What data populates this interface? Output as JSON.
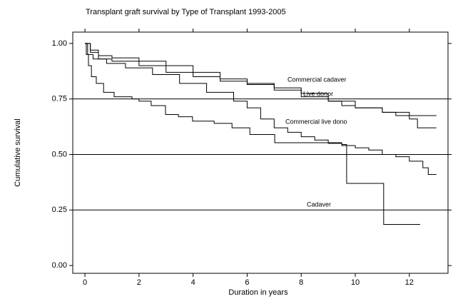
{
  "chart_data": {
    "type": "step",
    "title": "Transplant graft survival by Type of Transplant 1993-2005",
    "x_label": "Duration in years",
    "y_label": "Cumulative survival",
    "xlim": [
      -0.45,
      13.43
    ],
    "ylim": [
      -0.035,
      1.051
    ],
    "xticks": [
      0,
      2,
      4,
      6,
      8,
      10,
      12
    ],
    "yticks": [
      {
        "value": 0,
        "label": "0.00"
      },
      {
        "value": 0.25,
        "label": "0.25"
      },
      {
        "value": 0.5,
        "label": "0.50"
      },
      {
        "value": 0.75,
        "label": "0.75"
      },
      {
        "value": 1,
        "label": "1.00"
      }
    ],
    "grid": true,
    "series": [
      {
        "name": "Commercial cadaver",
        "color": "#000000",
        "x": [
          0,
          0.2,
          0.5,
          1,
          2,
          3,
          4,
          5,
          6,
          7,
          8,
          9,
          9.5,
          10,
          11,
          11.5,
          13
        ],
        "values": [
          1,
          0.96,
          0.945,
          0.935,
          0.92,
          0.9,
          0.87,
          0.84,
          0.82,
          0.8,
          0.775,
          0.74,
          0.72,
          0.71,
          0.69,
          0.675,
          0.675
        ]
      },
      {
        "name": "Live donor",
        "color": "#000000",
        "x": [
          0,
          0.2,
          0.5,
          1,
          2,
          3,
          4,
          5,
          6,
          7,
          8,
          9,
          10,
          11,
          12,
          12.3,
          13
        ],
        "values": [
          1,
          0.97,
          0.93,
          0.92,
          0.9,
          0.87,
          0.85,
          0.83,
          0.815,
          0.79,
          0.76,
          0.74,
          0.71,
          0.69,
          0.66,
          0.62,
          0.62
        ]
      },
      {
        "name": "Commercial live dono",
        "color": "#000000",
        "x": [
          0,
          0.1,
          0.3,
          0.8,
          1.5,
          2.5,
          3.5,
          4.5,
          5.5,
          6,
          6.5,
          7,
          7.5,
          8,
          8.5,
          9,
          9.5,
          10,
          10.5,
          11,
          11.5,
          12,
          12.5,
          12.7,
          13
        ],
        "values": [
          1,
          0.95,
          0.93,
          0.91,
          0.89,
          0.86,
          0.82,
          0.78,
          0.74,
          0.71,
          0.66,
          0.62,
          0.6,
          0.58,
          0.565,
          0.55,
          0.54,
          0.53,
          0.52,
          0.5,
          0.49,
          0.47,
          0.44,
          0.41,
          0.41
        ]
      },
      {
        "name": "Cadaver",
        "color": "#000000",
        "x": [
          0,
          0.05,
          0.13,
          0.24,
          0.42,
          0.69,
          1.08,
          1.74,
          2,
          2.45,
          2.98,
          3.46,
          3.98,
          4.78,
          5.44,
          6.1,
          7.02,
          9.5,
          9.68,
          11.05,
          12.4
        ],
        "values": [
          1,
          0.95,
          0.9,
          0.85,
          0.82,
          0.78,
          0.76,
          0.75,
          0.74,
          0.72,
          0.68,
          0.67,
          0.65,
          0.64,
          0.62,
          0.59,
          0.553,
          0.545,
          0.37,
          0.185,
          0.185
        ]
      }
    ]
  }
}
